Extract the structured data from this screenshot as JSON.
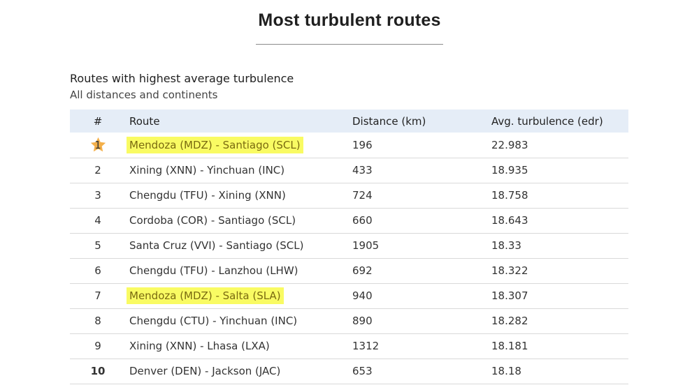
{
  "page": {
    "title": "Most turbulent routes",
    "heading": "Routes with highest average turbulence",
    "subheading": "All distances and continents"
  },
  "table": {
    "headers": {
      "rank": "#",
      "route": "Route",
      "distance": "Distance (km)",
      "turbulence": "Avg. turbulence (edr)"
    },
    "rows": [
      {
        "rank": "1",
        "route": "Mendoza (MDZ) - Santiago (SCL)",
        "distance": "196",
        "turbulence": "22.983",
        "highlighted": true,
        "star": true
      },
      {
        "rank": "2",
        "route": "Xining (XNN) - Yinchuan (INC)",
        "distance": "433",
        "turbulence": "18.935",
        "highlighted": false
      },
      {
        "rank": "3",
        "route": "Chengdu (TFU) - Xining (XNN)",
        "distance": "724",
        "turbulence": "18.758",
        "highlighted": false
      },
      {
        "rank": "4",
        "route": "Cordoba (COR) - Santiago (SCL)",
        "distance": "660",
        "turbulence": "18.643",
        "highlighted": false
      },
      {
        "rank": "5",
        "route": "Santa Cruz (VVI) - Santiago (SCL)",
        "distance": "1905",
        "turbulence": "18.33",
        "highlighted": false
      },
      {
        "rank": "6",
        "route": "Chengdu (TFU) - Lanzhou (LHW)",
        "distance": "692",
        "turbulence": "18.322",
        "highlighted": false
      },
      {
        "rank": "7",
        "route": "Mendoza (MDZ) - Salta (SLA)",
        "distance": "940",
        "turbulence": "18.307",
        "highlighted": true
      },
      {
        "rank": "8",
        "route": "Chengdu (CTU) - Yinchuan (INC)",
        "distance": "890",
        "turbulence": "18.282",
        "highlighted": false
      },
      {
        "rank": "9",
        "route": "Xining (XNN) - Lhasa (LXA)",
        "distance": "1312",
        "turbulence": "18.181",
        "highlighted": false
      },
      {
        "rank": "10",
        "route": "Denver (DEN) - Jackson (JAC)",
        "distance": "653",
        "turbulence": "18.18",
        "highlighted": false
      }
    ]
  },
  "colors": {
    "header_bg": "#e5edf7",
    "highlight": "#f9fb63",
    "star": "#f4b04a"
  },
  "icons": {
    "top_rank": "star-icon"
  }
}
